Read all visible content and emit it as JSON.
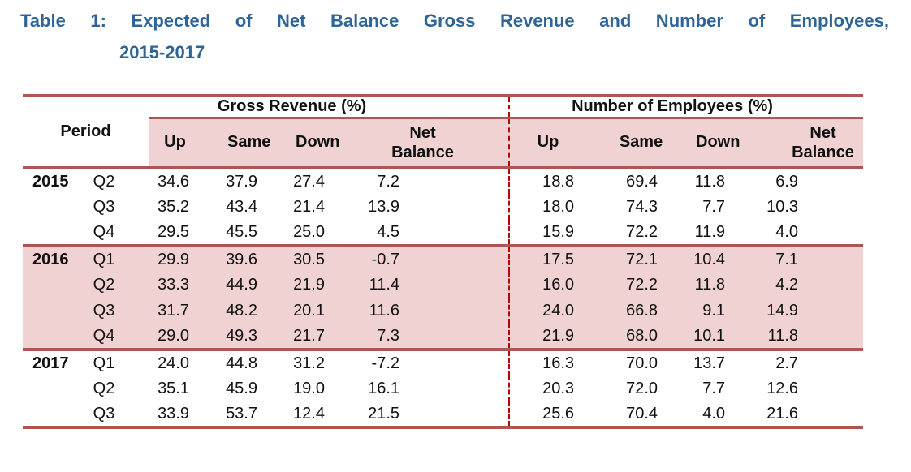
{
  "title": {
    "line1": "Table 1: Expected of Net Balance Gross Revenue and Number of Employees,",
    "line2": "2015-2017"
  },
  "table": {
    "period_header": "Period",
    "group_headers": {
      "gross_revenue": "Gross Revenue (%)",
      "employees": "Number of Employees (%)"
    },
    "sub_headers": [
      "Up",
      "Same",
      "Down",
      "Net Balance"
    ],
    "groups": [
      {
        "year": "2015",
        "rows": [
          {
            "quarter": "Q2",
            "gross_revenue": [
              "34.6",
              "37.9",
              "27.4",
              "7.2"
            ],
            "employees": [
              "18.8",
              "69.4",
              "11.8",
              "6.9"
            ]
          },
          {
            "quarter": "Q3",
            "gross_revenue": [
              "35.2",
              "43.4",
              "21.4",
              "13.9"
            ],
            "employees": [
              "18.0",
              "74.3",
              "7.7",
              "10.3"
            ]
          },
          {
            "quarter": "Q4",
            "gross_revenue": [
              "29.5",
              "45.5",
              "25.0",
              "4.5"
            ],
            "employees": [
              "15.9",
              "72.2",
              "11.9",
              "4.0"
            ]
          }
        ]
      },
      {
        "year": "2016",
        "rows": [
          {
            "quarter": "Q1",
            "gross_revenue": [
              "29.9",
              "39.6",
              "30.5",
              "-0.7"
            ],
            "employees": [
              "17.5",
              "72.1",
              "10.4",
              "7.1"
            ]
          },
          {
            "quarter": "Q2",
            "gross_revenue": [
              "33.3",
              "44.9",
              "21.9",
              "11.4"
            ],
            "employees": [
              "16.0",
              "72.2",
              "11.8",
              "4.2"
            ]
          },
          {
            "quarter": "Q3",
            "gross_revenue": [
              "31.7",
              "48.2",
              "20.1",
              "11.6"
            ],
            "employees": [
              "24.0",
              "66.8",
              "9.1",
              "14.9"
            ]
          },
          {
            "quarter": "Q4",
            "gross_revenue": [
              "29.0",
              "49.3",
              "21.7",
              "7.3"
            ],
            "employees": [
              "21.9",
              "68.0",
              "10.1",
              "11.8"
            ]
          }
        ]
      },
      {
        "year": "2017",
        "rows": [
          {
            "quarter": "Q1",
            "gross_revenue": [
              "24.0",
              "44.8",
              "31.2",
              "-7.2"
            ],
            "employees": [
              "16.3",
              "70.0",
              "13.7",
              "2.7"
            ]
          },
          {
            "quarter": "Q2",
            "gross_revenue": [
              "35.1",
              "45.9",
              "19.0",
              "16.1"
            ],
            "employees": [
              "20.3",
              "72.0",
              "7.7",
              "12.6"
            ]
          },
          {
            "quarter": "Q3",
            "gross_revenue": [
              "33.9",
              "53.7",
              "12.4",
              "21.5"
            ],
            "employees": [
              "25.6",
              "70.4",
              "4.0",
              "21.6"
            ]
          }
        ]
      }
    ]
  },
  "colors": {
    "title_blue": "#2F6496",
    "table_border_red": "#AE5653",
    "row_shade_pink": "#F0D2D3",
    "divider_dashed_red": "#C00000"
  }
}
